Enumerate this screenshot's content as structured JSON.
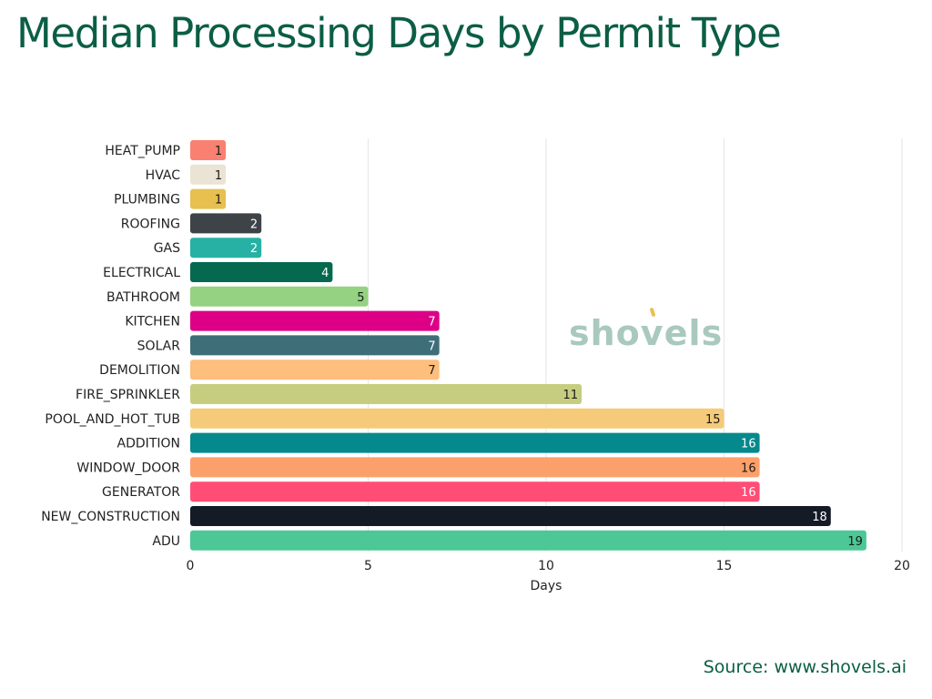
{
  "chart_data": {
    "type": "bar",
    "orientation": "horizontal",
    "title": "Median Processing Days by Permit Type",
    "xlabel": "Days",
    "ylabel": "",
    "xlim": [
      0,
      20
    ],
    "xticks": [
      0,
      5,
      10,
      15,
      20
    ],
    "grid": true,
    "categories": [
      "HEAT_PUMP",
      "HVAC",
      "PLUMBING",
      "ROOFING",
      "GAS",
      "ELECTRICAL",
      "BATHROOM",
      "KITCHEN",
      "SOLAR",
      "DEMOLITION",
      "FIRE_SPRINKLER",
      "POOL_AND_HOT_TUB",
      "ADDITION",
      "WINDOW_DOOR",
      "GENERATOR",
      "NEW_CONSTRUCTION",
      "ADU"
    ],
    "values": [
      1,
      1,
      1,
      2,
      2,
      4,
      5,
      7,
      7,
      7,
      11,
      15,
      16,
      16,
      16,
      18,
      19
    ],
    "colors": [
      "#fa8072",
      "#ebe3d3",
      "#e7c04f",
      "#3e4347",
      "#27b1a4",
      "#05694f",
      "#95d281",
      "#dd0087",
      "#3e6f79",
      "#fdbe7e",
      "#c7cd7e",
      "#f5ca79",
      "#06898d",
      "#fca06b",
      "#ff4d75",
      "#141a26",
      "#4cc795"
    ],
    "label_colors": [
      "#1a1a1a",
      "#1a1a1a",
      "#1a1a1a",
      "#ffffff",
      "#ffffff",
      "#ffffff",
      "#1a1a1a",
      "#ffffff",
      "#ffffff",
      "#1a1a1a",
      "#1a1a1a",
      "#1a1a1a",
      "#ffffff",
      "#1a1a1a",
      "#ffffff",
      "#ffffff",
      "#1a1a1a"
    ]
  },
  "source": "Source: www.shovels.ai",
  "watermark": "shovels"
}
